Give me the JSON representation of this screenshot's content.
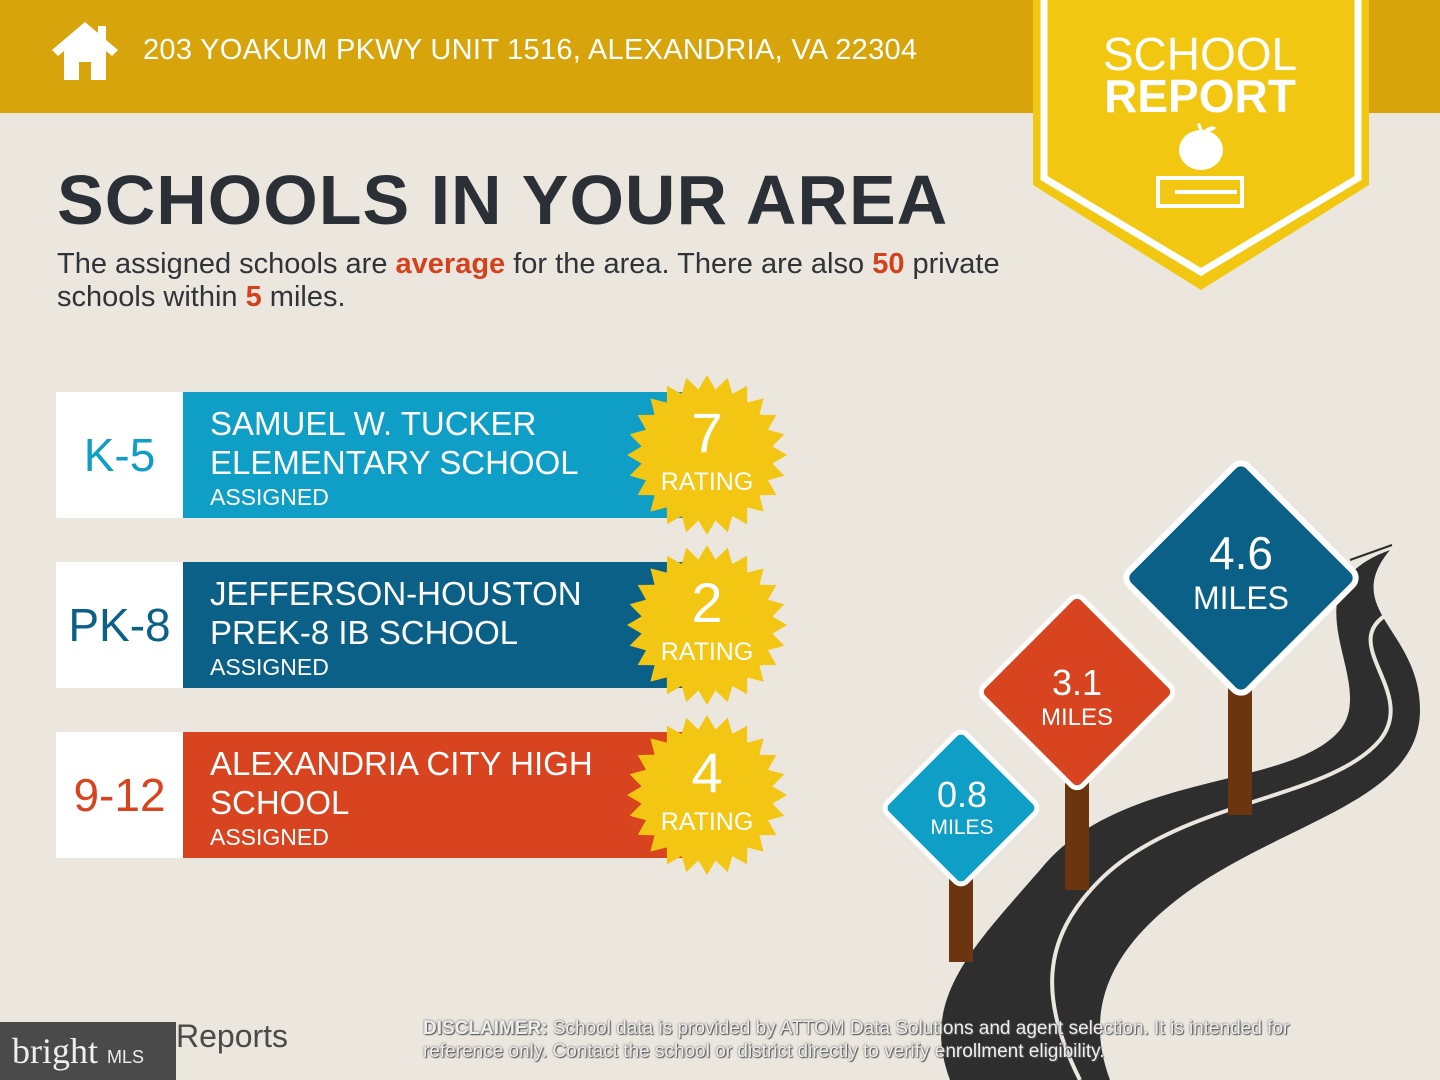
{
  "header": {
    "address": "203 YOAKUM PKWY UNIT 1516, ALEXANDRIA, VA 22304",
    "icon": "home-icon"
  },
  "badge": {
    "line1": "SCHOOL",
    "line2": "REPORT",
    "icon": "apple-book-icon"
  },
  "title": "SCHOOLS IN YOUR AREA",
  "summary": {
    "p1": "The assigned schools are ",
    "quality": "average",
    "p2": " for the area. There are also ",
    "count": "50",
    "p3": " private schools within ",
    "miles": "5",
    "p4": " miles."
  },
  "schools": [
    {
      "grade": "K-5",
      "name1": "SAMUEL W. TUCKER",
      "name2": "ELEMENTARY SCHOOL",
      "status": "ASSIGNED",
      "rating": "7",
      "rating_label": "RATING",
      "color": "#0f9ec6"
    },
    {
      "grade": "PK-8",
      "name1": "JEFFERSON-HOUSTON",
      "name2": "PREK-8 IB SCHOOL",
      "status": "ASSIGNED",
      "rating": "2",
      "rating_label": "RATING",
      "color": "#0b6088"
    },
    {
      "grade": "9-12",
      "name1": "ALEXANDRIA CITY HIGH",
      "name2": "SCHOOL",
      "status": "ASSIGNED",
      "rating": "4",
      "rating_label": "RATING",
      "color": "#d8441f"
    }
  ],
  "distances": [
    {
      "value": "0.8",
      "unit": "MILES",
      "color": "#0f9ec6"
    },
    {
      "value": "3.1",
      "unit": "MILES",
      "color": "#d8441f"
    },
    {
      "value": "4.6",
      "unit": "MILES",
      "color": "#0b6088"
    }
  ],
  "footer": {
    "logo": "bright",
    "logo_mls": "MLS",
    "reports": "Reports",
    "disclaimer_label": "DISCLAIMER:",
    "disclaimer": " School data is provided by ATTOM Data Solutions and agent selection. It is intended for reference only. Contact the school or district directly to verify enrollment eligibility."
  }
}
